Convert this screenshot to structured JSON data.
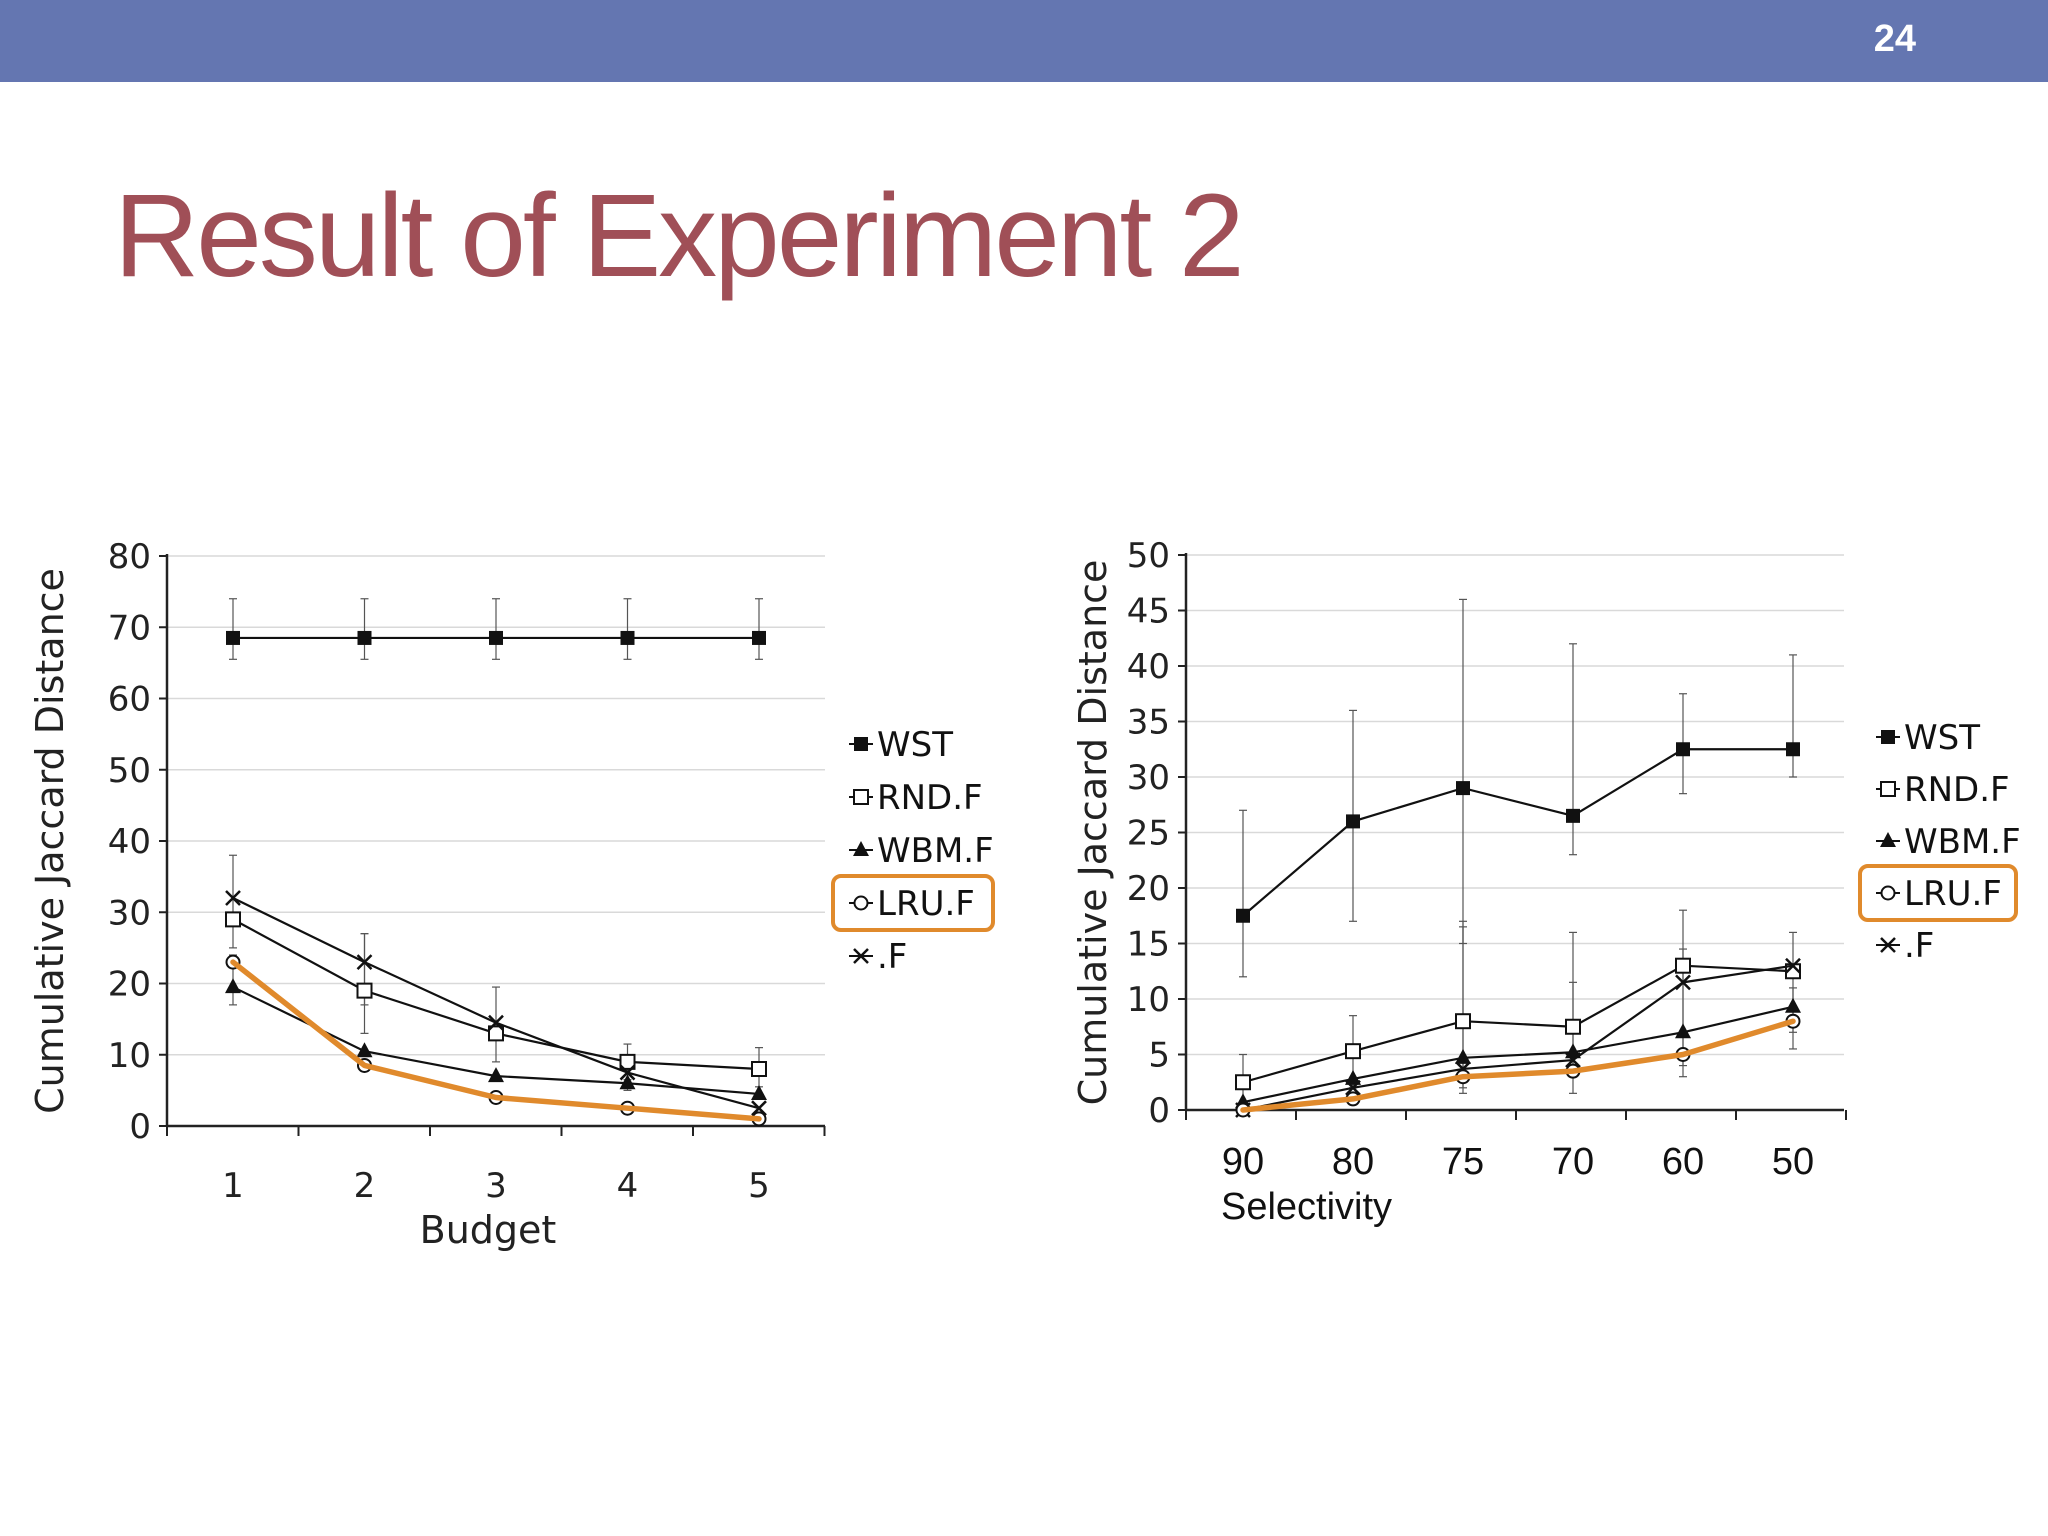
{
  "slide": {
    "page_number": "24",
    "title": "Result of Experiment 2"
  },
  "colors": {
    "header_bar": "#6476b1",
    "title": "#a04f57",
    "highlight": "#e08a2c",
    "series": "#111111",
    "grid": "#d9d9d9"
  },
  "chart_data": [
    {
      "type": "line",
      "xlabel": "Budget",
      "ylabel": "Cumulative Jaccard Distance",
      "categories": [
        "1",
        "2",
        "3",
        "4",
        "5"
      ],
      "ylim": [
        0,
        80
      ],
      "yticks": [
        "0",
        "10",
        "20",
        "30",
        "40",
        "50",
        "60",
        "70",
        "80"
      ],
      "grid": true,
      "legend_position": "right",
      "highlighted_series": "LRU.F",
      "series": [
        {
          "name": "WST",
          "marker": "square-filled",
          "values": [
            68.5,
            68.5,
            68.5,
            68.5,
            68.5
          ],
          "err": [
            [
              65.5,
              74
            ],
            [
              65.5,
              74
            ],
            [
              65.5,
              74
            ],
            [
              65.5,
              74
            ],
            [
              65.5,
              74
            ]
          ]
        },
        {
          "name": "RND.F",
          "marker": "square-open",
          "values": [
            29,
            19,
            13,
            9,
            8
          ],
          "err": [
            null,
            [
              13,
              27
            ],
            null,
            [
              6.5,
              11.5
            ],
            [
              5.5,
              11
            ]
          ]
        },
        {
          "name": "WBM.F",
          "marker": "triangle",
          "values": [
            19.5,
            10.5,
            7,
            6,
            4.5
          ],
          "err": [
            [
              17,
              24
            ],
            null,
            null,
            null,
            null
          ]
        },
        {
          "name": "LRU.F",
          "marker": "circle-open",
          "values": [
            23,
            8.5,
            4,
            2.5,
            1
          ],
          "err": [
            null,
            null,
            null,
            null,
            null
          ]
        },
        {
          "name": ".F",
          "marker": "x",
          "values": [
            32,
            23,
            14.5,
            7.5,
            2.5
          ],
          "err": [
            [
              25,
              38
            ],
            [
              17,
              27
            ],
            [
              9,
              19.5
            ],
            [
              5,
              10
            ],
            null
          ]
        }
      ]
    },
    {
      "type": "line",
      "xlabel": "Selectivity",
      "ylabel": "Cumulative Jaccard Distance",
      "categories": [
        "90",
        "80",
        "75",
        "70",
        "60",
        "50"
      ],
      "ylim": [
        0,
        50
      ],
      "yticks": [
        "0",
        "5",
        "10",
        "15",
        "20",
        "25",
        "30",
        "35",
        "40",
        "45",
        "50"
      ],
      "grid": true,
      "legend_position": "right",
      "highlighted_series": "LRU.F",
      "series": [
        {
          "name": "WST",
          "marker": "square-filled",
          "values": [
            17.5,
            26,
            29,
            26.5,
            32.5,
            32.5
          ],
          "err": [
            [
              12,
              27
            ],
            [
              17,
              36
            ],
            [
              15,
              46
            ],
            [
              23,
              42
            ],
            [
              28.5,
              37.5
            ],
            [
              30,
              41
            ]
          ]
        },
        {
          "name": "RND.F",
          "marker": "square-open",
          "values": [
            2.5,
            5.3,
            8,
            7.5,
            13,
            12.5
          ],
          "err": [
            [
              0,
              5
            ],
            [
              2,
              8.5
            ],
            [
              1.5,
              16.5
            ],
            [
              4,
              16
            ],
            [
              7,
              18
            ],
            [
              7,
              16
            ]
          ]
        },
        {
          "name": "WBM.F",
          "marker": "triangle",
          "values": [
            0.7,
            2.8,
            4.7,
            5.2,
            7,
            9.3
          ],
          "err": [
            null,
            null,
            [
              2,
              17
            ],
            null,
            [
              4,
              14.5
            ],
            null
          ]
        },
        {
          "name": "LRU.F",
          "marker": "circle-open",
          "values": [
            0,
            1,
            3,
            3.5,
            5,
            8
          ],
          "err": [
            null,
            null,
            null,
            null,
            [
              3,
              7
            ],
            [
              5.5,
              11
            ]
          ]
        },
        {
          "name": ".F",
          "marker": "x",
          "values": [
            0,
            2,
            3.7,
            4.5,
            11.5,
            13
          ],
          "err": [
            null,
            null,
            null,
            [
              1.5,
              11.5
            ],
            null,
            null
          ]
        }
      ]
    }
  ]
}
